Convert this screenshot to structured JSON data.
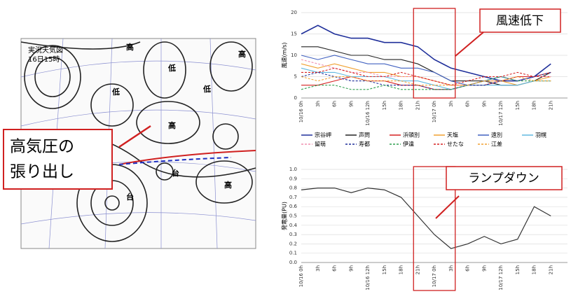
{
  "weather_map": {
    "title": "実況天気図",
    "time": "16日15時",
    "labels": [
      "高",
      "低",
      "低",
      "高",
      "低",
      "高",
      "台",
      "台",
      "高"
    ],
    "callout": [
      "高気圧の",
      "張り出し"
    ]
  },
  "chart_data": [
    {
      "type": "line",
      "ylabel": "風速(m/s)",
      "annotation": "風速低下",
      "categories": [
        "10/16 0h",
        "3h",
        "6h",
        "9h",
        "10/16 12h",
        "15h",
        "18h",
        "21h",
        "10/17 0h",
        "3h",
        "6h",
        "9h",
        "10/17 12h",
        "15h",
        "18h",
        "21h"
      ],
      "ylim": [
        0,
        20
      ],
      "yticks": [
        0,
        5,
        10,
        15,
        20
      ],
      "series": [
        {
          "name": "宗谷岬",
          "color": "#1f2f9a",
          "dashed": false,
          "values": [
            15,
            17,
            15,
            14,
            14,
            13,
            13,
            12,
            9,
            7,
            6,
            5,
            4,
            4,
            5,
            8
          ]
        },
        {
          "name": "声問",
          "color": "#222222",
          "dashed": false,
          "values": [
            12,
            12,
            11,
            10,
            10,
            9,
            9,
            8,
            6,
            4,
            4,
            4,
            3,
            3,
            4,
            6
          ]
        },
        {
          "name": "浜頓別",
          "color": "#d62020",
          "dashed": false,
          "values": [
            3,
            3,
            4,
            5,
            4,
            4,
            3,
            3,
            2,
            2,
            3,
            3,
            4,
            5,
            5,
            5
          ]
        },
        {
          "name": "天塩",
          "color": "#f0a030",
          "dashed": false,
          "values": [
            8,
            7,
            8,
            7,
            6,
            6,
            5,
            5,
            4,
            3,
            3,
            4,
            4,
            3,
            4,
            5
          ]
        },
        {
          "name": "遠別",
          "color": "#4060c0",
          "dashed": false,
          "values": [
            10,
            9,
            10,
            9,
            8,
            8,
            7,
            7,
            6,
            4,
            3,
            4,
            5,
            4,
            5,
            6
          ]
        },
        {
          "name": "羽幌",
          "color": "#60b8e0",
          "dashed": false,
          "values": [
            7,
            6,
            6,
            5,
            5,
            5,
            4,
            4,
            3,
            2,
            3,
            3,
            3,
            3,
            4,
            4
          ]
        },
        {
          "name": "留萌",
          "color": "#f090b0",
          "dashed": true,
          "values": [
            9,
            8,
            7,
            6,
            6,
            5,
            5,
            5,
            4,
            3,
            3,
            4,
            4,
            4,
            5,
            5
          ]
        },
        {
          "name": "寿都",
          "color": "#1f2f9a",
          "dashed": true,
          "values": [
            5,
            6,
            5,
            4,
            4,
            3,
            3,
            3,
            2,
            2,
            3,
            3,
            4,
            4,
            5,
            6
          ]
        },
        {
          "name": "伊達",
          "color": "#30a050",
          "dashed": true,
          "values": [
            2,
            3,
            3,
            2,
            2,
            3,
            2,
            2,
            2,
            2,
            3,
            4,
            5,
            4,
            4,
            4
          ]
        },
        {
          "name": "せたな",
          "color": "#d62020",
          "dashed": true,
          "values": [
            6,
            6,
            7,
            6,
            5,
            5,
            6,
            5,
            4,
            3,
            4,
            5,
            5,
            6,
            5,
            6
          ]
        },
        {
          "name": "江差",
          "color": "#f0a030",
          "dashed": true,
          "values": [
            5,
            4,
            5,
            5,
            4,
            4,
            4,
            3,
            3,
            3,
            3,
            4,
            4,
            5,
            4,
            4
          ]
        }
      ]
    },
    {
      "type": "line",
      "ylabel": "発電量(PU)",
      "annotation": "ランプダウン",
      "categories": [
        "10/16 0h",
        "3h",
        "6h",
        "9h",
        "10/16 12h",
        "15h",
        "18h",
        "21h",
        "10/17 0h",
        "3h",
        "6h",
        "9h",
        "10/17 12h",
        "15h",
        "18h",
        "21h"
      ],
      "ylim": [
        0,
        1
      ],
      "yticks": [
        {
          "value": 0,
          "label": "0.0"
        },
        {
          "value": 0.1,
          "label": "0.1"
        },
        {
          "value": 0.2,
          "label": "0.2"
        },
        {
          "value": 0.3,
          "label": "0.3"
        },
        {
          "value": 0.4,
          "label": "0.4"
        },
        {
          "value": 0.5,
          "label": "0.5"
        },
        {
          "value": 0.6,
          "label": "0.6"
        },
        {
          "value": 0.7,
          "label": "0.7"
        },
        {
          "value": 0.8,
          "label": "0.8"
        },
        {
          "value": 0.9,
          "label": "0.9"
        },
        {
          "value": 1,
          "label": "1.0"
        }
      ],
      "color": "#333333",
      "values": [
        0.78,
        0.8,
        0.8,
        0.75,
        0.8,
        0.78,
        0.7,
        0.5,
        0.3,
        0.15,
        0.2,
        0.28,
        0.2,
        0.25,
        0.6,
        0.5
      ]
    }
  ]
}
